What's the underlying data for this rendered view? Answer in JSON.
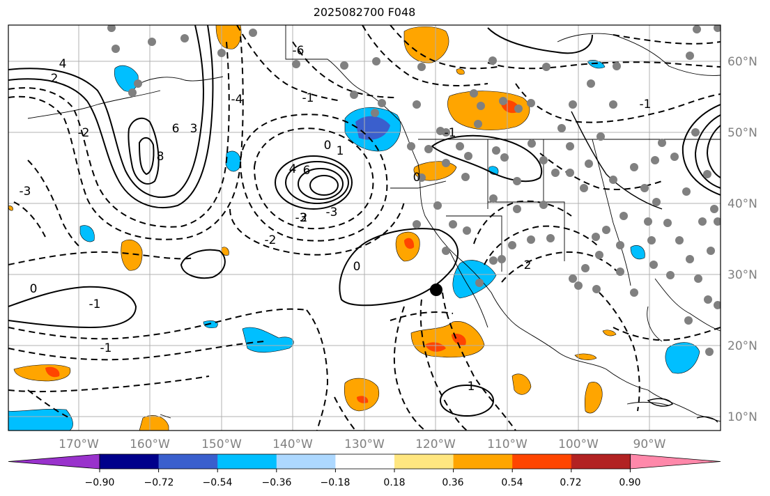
{
  "title": "2025082700 F048",
  "lat_labels": [
    "60°N",
    "50°N",
    "40°N",
    "30°N",
    "20°N",
    "10°N"
  ],
  "lon_labels": [
    "170°W",
    "160°W",
    "150°W",
    "140°W",
    "130°W",
    "120°W",
    "110°W",
    "100°W",
    "90°W"
  ],
  "colorbar": {
    "ticks": [
      "−0.90",
      "−0.72",
      "−0.54",
      "−0.36",
      "−0.18",
      "0.18",
      "0.36",
      "0.54",
      "0.72",
      "0.90"
    ],
    "colors": [
      "#9932cc",
      "#00008b",
      "#3a5fcd",
      "#00bfff",
      "#add8ff",
      "#ffffff",
      "#ffe680",
      "#ffa500",
      "#ff4500",
      "#b22222",
      "#ff88aa"
    ]
  },
  "contour_labels": [
    "4",
    "2",
    "-2",
    "-3",
    "6",
    "3",
    "-4",
    "8",
    "-6",
    "0",
    "-1",
    "1",
    "4",
    "6",
    "-3",
    "2",
    "-3",
    "-2",
    "-1",
    "0",
    "-1",
    "1",
    "-2",
    "-1",
    "0",
    "0",
    "-1"
  ],
  "colors": {
    "positive": "#ffa500",
    "positive_strong": "#ff4500",
    "negative": "#00bfff",
    "negative_strong": "#3a5fcd",
    "marker": "#808080",
    "contour": "#000000"
  }
}
